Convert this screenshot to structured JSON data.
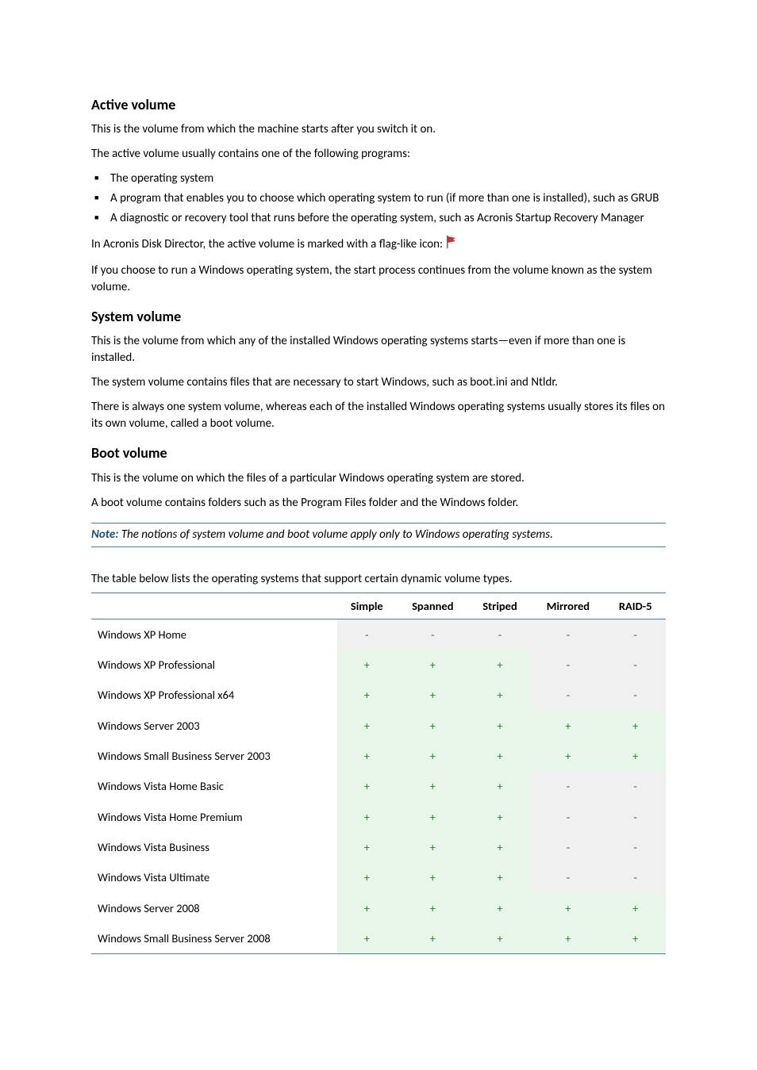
{
  "sections": {
    "active_volume": {
      "heading": "Active volume",
      "p1": "This is the volume from which the machine starts after you switch it on.",
      "p2": "The active volume usually contains one of the following programs:",
      "bullets": [
        "The operating system",
        "A program that enables you to choose which operating system to run (if more than one is installed), such as GRUB",
        "A diagnostic or recovery tool that runs before the operating system, such as Acronis Startup Recovery Manager"
      ],
      "p3_pre": "In Acronis Disk Director, the active volume is marked with a flag-like icon: ",
      "p4": "If you choose to run a Windows operating system, the start process continues from the volume known as the system volume."
    },
    "system_volume": {
      "heading": "System volume",
      "p1": "This is the volume from which any of the installed Windows operating systems starts—even if more than one is installed.",
      "p2": "The system volume contains files that are necessary to start Windows, such as boot.ini and Ntldr.",
      "p3": "There is always one system volume, whereas each of the installed Windows operating systems usually stores its files on its own volume, called a boot volume."
    },
    "boot_volume": {
      "heading": "Boot volume",
      "p1": "This is the volume on which the files of a particular Windows operating system are stored.",
      "p2": "A boot volume contains folders such as the Program Files folder and the Windows folder."
    },
    "note": {
      "label": "Note:",
      "text": " The notions of system volume and boot volume apply only to Windows operating systems."
    }
  },
  "table": {
    "intro": "The table below lists the operating systems that support certain dynamic volume types.",
    "columns": [
      "",
      "Simple",
      "Spanned",
      "Striped",
      "Mirrored",
      "RAID-5"
    ],
    "plus_color": "#2e7d32",
    "minus_color": "#555555",
    "plus_bg": "#e8f5e9",
    "minus_bg": "#f0f0f0",
    "rows": [
      {
        "os": "Windows XP Home",
        "cells": [
          "-",
          "-",
          "-",
          "-",
          "-"
        ]
      },
      {
        "os": "Windows XP Professional",
        "cells": [
          "+",
          "+",
          "+",
          "-",
          "-"
        ]
      },
      {
        "os": "Windows XP Professional x64",
        "cells": [
          "+",
          "+",
          "+",
          "-",
          "-"
        ]
      },
      {
        "os": "Windows Server 2003",
        "cells": [
          "+",
          "+",
          "+",
          "+",
          "+"
        ]
      },
      {
        "os": "Windows Small Business Server 2003",
        "cells": [
          "+",
          "+",
          "+",
          "+",
          "+"
        ]
      },
      {
        "os": "Windows Vista Home Basic",
        "cells": [
          "+",
          "+",
          "+",
          "-",
          "-"
        ]
      },
      {
        "os": "Windows Vista Home Premium",
        "cells": [
          "+",
          "+",
          "+",
          "-",
          "-"
        ]
      },
      {
        "os": "Windows Vista Business",
        "cells": [
          "+",
          "+",
          "+",
          "-",
          "-"
        ]
      },
      {
        "os": "Windows Vista Ultimate",
        "cells": [
          "+",
          "+",
          "+",
          "-",
          "-"
        ]
      },
      {
        "os": "Windows Server 2008",
        "cells": [
          "+",
          "+",
          "+",
          "+",
          "+"
        ]
      },
      {
        "os": "Windows Small Business Server 2008",
        "cells": [
          "+",
          "+",
          "+",
          "+",
          "+"
        ]
      }
    ]
  },
  "flag_icon": {
    "flag_color": "#d32f2f",
    "pole_color": "#666666"
  }
}
